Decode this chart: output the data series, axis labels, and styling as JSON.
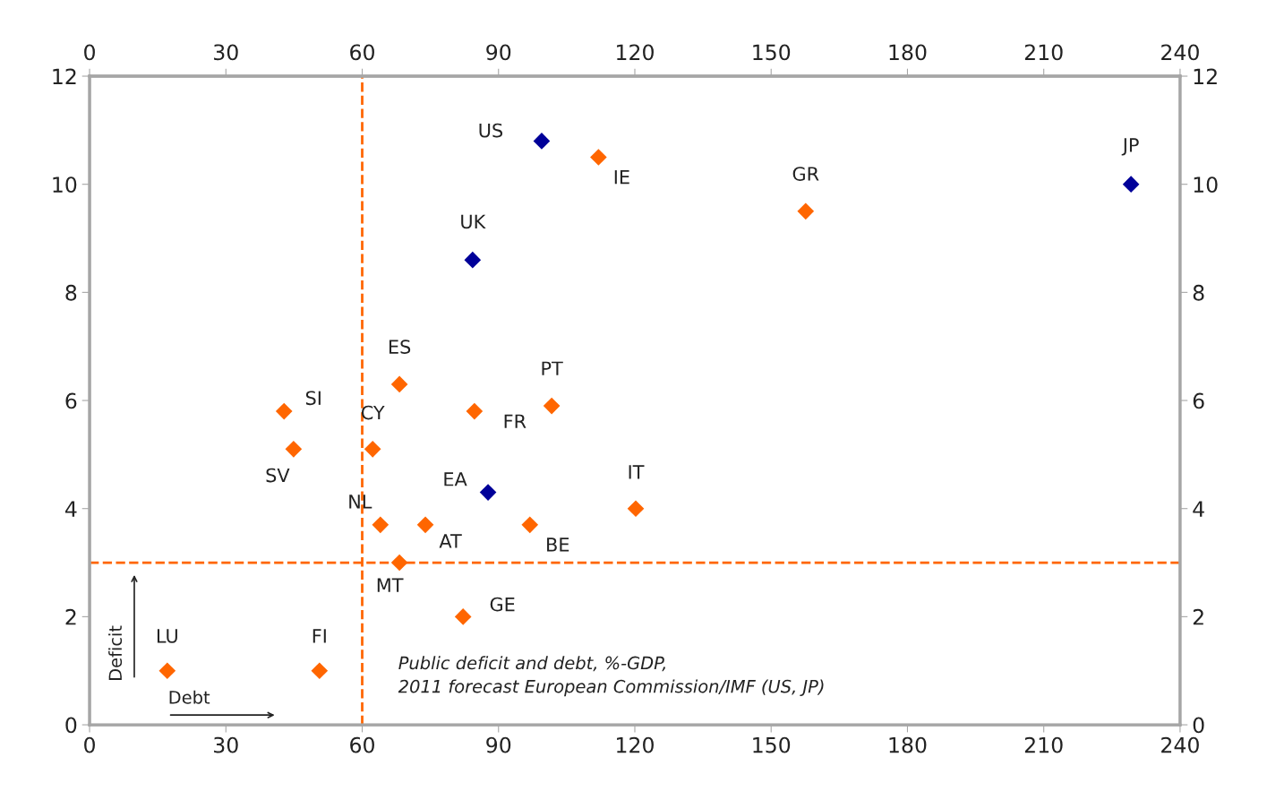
{
  "chart_data": {
    "type": "scatter",
    "marker": "diamond",
    "grid": false,
    "legend": false,
    "xlim": [
      0,
      240
    ],
    "xticks": [
      0,
      30,
      60,
      90,
      120,
      150,
      180,
      210,
      240
    ],
    "x2lim": [
      0,
      240
    ],
    "x2ticks": [
      0,
      30,
      60,
      90,
      120,
      150,
      180,
      210,
      240
    ],
    "ylim": [
      0,
      12
    ],
    "yticks": [
      0,
      2,
      4,
      6,
      8,
      10,
      12
    ],
    "y2lim": [
      0,
      12
    ],
    "y2ticks": [
      0,
      2,
      4,
      6,
      8,
      10,
      12
    ],
    "series": [
      {
        "color": "#ff6600",
        "x": [
          112,
          157.6,
          68.2,
          42.8,
          44.9,
          62.3,
          84.7,
          101.7,
          120.2,
          64,
          73.9,
          96.9,
          68.2,
          82.2,
          17.1,
          50.6
        ],
        "values": [
          10.5,
          9.5,
          6.3,
          5.8,
          5.1,
          5.1,
          5.8,
          5.9,
          4.0,
          3.7,
          3.7,
          3.7,
          3.0,
          2.0,
          1.0,
          1.0
        ]
      },
      {
        "color": "#000099",
        "x": [
          99.5,
          84.3,
          87.7,
          229.2
        ],
        "values": [
          10.8,
          8.6,
          4.3,
          10.0
        ]
      }
    ],
    "ref_lines": [
      {
        "axis": "x",
        "value": 60,
        "color": "#ff6600",
        "line_style": "dashed"
      },
      {
        "axis": "y",
        "value": 3,
        "color": "#ff6600",
        "line_style": "dashed"
      }
    ],
    "annotations": [
      "Public deficit and debt, %-GDP,\n2011 forecast European Commission/IMF (US, JP)",
      "Deficit",
      "Debt",
      {
        "text": "IE",
        "x": 112,
        "y": 10.5
      },
      {
        "text": "GR",
        "x": 157.6,
        "y": 9.5
      },
      {
        "text": "ES",
        "x": 68.2,
        "y": 6.3
      },
      {
        "text": "SI",
        "x": 42.8,
        "y": 5.8
      },
      {
        "text": "SV",
        "x": 44.9,
        "y": 5.1
      },
      {
        "text": "CY",
        "x": 62.3,
        "y": 5.1
      },
      {
        "text": "FR",
        "x": 84.7,
        "y": 5.8
      },
      {
        "text": "PT",
        "x": 101.7,
        "y": 5.9
      },
      {
        "text": "IT",
        "x": 120.2,
        "y": 4.0
      },
      {
        "text": "NL",
        "x": 64,
        "y": 3.7
      },
      {
        "text": "AT",
        "x": 73.9,
        "y": 3.7
      },
      {
        "text": "BE",
        "x": 96.9,
        "y": 3.7
      },
      {
        "text": "MT",
        "x": 68.2,
        "y": 3.0
      },
      {
        "text": "GE",
        "x": 82.2,
        "y": 2.0
      },
      {
        "text": "LU",
        "x": 17.1,
        "y": 1.0
      },
      {
        "text": "FI",
        "x": 50.6,
        "y": 1.0
      },
      {
        "text": "US",
        "x": 99.5,
        "y": 10.8
      },
      {
        "text": "UK",
        "x": 84.3,
        "y": 8.6
      },
      {
        "text": "EA",
        "x": 87.7,
        "y": 4.3
      },
      {
        "text": "JP",
        "x": 229.2,
        "y": 10.0
      }
    ]
  }
}
